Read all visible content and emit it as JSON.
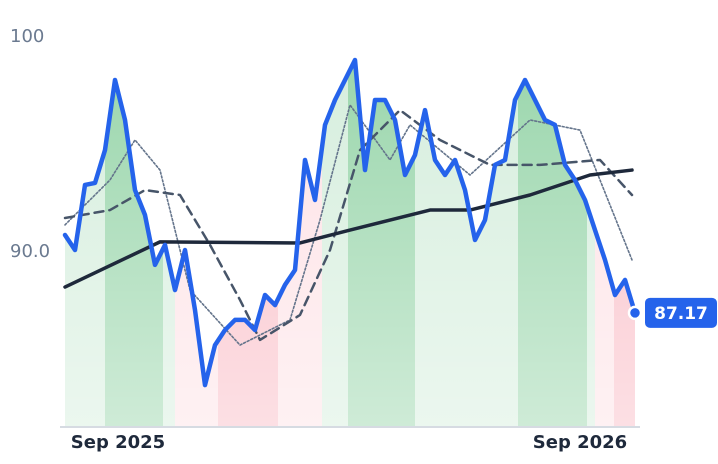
{
  "chart_data": {
    "type": "line",
    "xlim": [
      0,
      57
    ],
    "ylim": [
      81.86,
      101.72
    ],
    "xticks": [
      {
        "value": 5.3,
        "label": "Sep 2025"
      },
      {
        "value": 51.5,
        "label": "Sep 2026"
      }
    ],
    "yticks": [
      {
        "value": 90,
        "label": "90.0"
      },
      100
    ],
    "regions": [
      {
        "from": 0,
        "to": 4,
        "color": "#d3eddb"
      },
      {
        "from": 4,
        "to": 9.8,
        "color": "#93d3a6"
      },
      {
        "from": 9.8,
        "to": 11,
        "color": "#d3eddb"
      },
      {
        "from": 11,
        "to": 15.3,
        "color": "#fde0e4"
      },
      {
        "from": 15.3,
        "to": 21.3,
        "color": "#f9b9c3"
      },
      {
        "from": 21.3,
        "to": 25.7,
        "color": "#fde0e4"
      },
      {
        "from": 25.7,
        "to": 28.3,
        "color": "#d3eddb"
      },
      {
        "from": 28.3,
        "to": 35,
        "color": "#93d3a6"
      },
      {
        "from": 35,
        "to": 45.3,
        "color": "#d3eddb"
      },
      {
        "from": 45.3,
        "to": 52.2,
        "color": "#93d3a6"
      },
      {
        "from": 52.2,
        "to": 53,
        "color": "#d3eddb"
      },
      {
        "from": 53,
        "to": 54.9,
        "color": "#fde0e4"
      },
      {
        "from": 54.9,
        "to": 57,
        "color": "#f9b9c3"
      }
    ],
    "series": [
      {
        "color": "#2563eb",
        "style": "solid",
        "x": [
          0,
          1,
          2,
          3,
          4,
          5,
          6,
          7,
          8,
          9,
          10,
          11,
          12,
          13,
          14,
          15,
          16,
          17,
          18,
          19,
          20,
          21,
          22,
          23,
          24,
          25,
          26,
          27,
          28,
          29,
          30,
          31,
          32,
          33,
          34,
          35,
          36,
          37,
          38,
          39,
          40,
          41,
          42,
          43,
          44,
          45,
          46,
          47,
          48,
          49,
          50,
          51,
          52,
          53,
          54,
          55,
          56,
          57
        ],
        "values": [
          90.79,
          90.09,
          93.12,
          93.21,
          94.74,
          98.0,
          96.14,
          92.88,
          91.72,
          89.4,
          90.33,
          88.23,
          90.09,
          87.3,
          83.81,
          85.67,
          86.37,
          86.84,
          86.84,
          86.37,
          88.0,
          87.53,
          88.47,
          89.16,
          94.28,
          92.42,
          95.91,
          97.07,
          98.0,
          98.93,
          93.81,
          97.07,
          97.07,
          96.14,
          93.58,
          94.51,
          96.6,
          94.28,
          93.58,
          94.28,
          92.88,
          90.56,
          91.49,
          94.05,
          94.28,
          97.07,
          98.0,
          97.07,
          96.14,
          95.91,
          94.05,
          93.35,
          92.42,
          91.02,
          89.63,
          88.0,
          88.7,
          87.17
        ]
      },
      {
        "color": "#1e293b",
        "style": "thick",
        "x": [
          0,
          9.5,
          23.5,
          28.5,
          36.5,
          40.5,
          46.5,
          52.5,
          56.7
        ],
        "values": [
          88.37,
          90.47,
          90.42,
          91.02,
          91.95,
          91.95,
          92.65,
          93.58,
          93.81
        ]
      },
      {
        "color": "#475569",
        "style": "dashed",
        "x": [
          0,
          4.5,
          8,
          11.5,
          14.5,
          17.5,
          19.5,
          23.5,
          26.5,
          29.5,
          33.5,
          37.5,
          42.5,
          47.5,
          53.5,
          56.7
        ],
        "values": [
          91.58,
          91.95,
          92.88,
          92.65,
          90.33,
          87.77,
          85.91,
          87.07,
          90.09,
          94.74,
          96.6,
          95.21,
          94.05,
          94.05,
          94.28,
          92.65
        ]
      },
      {
        "color": "#64748b",
        "style": "dotted",
        "x": [
          0,
          4.5,
          7,
          9.5,
          12.5,
          17.5,
          22.5,
          25.5,
          28.5,
          32.5,
          34.5,
          40.5,
          46.5,
          51.5,
          56.7
        ],
        "values": [
          91.26,
          93.35,
          95.21,
          93.81,
          88.23,
          85.67,
          86.84,
          91.49,
          96.84,
          94.28,
          95.91,
          93.58,
          96.14,
          95.67,
          89.63
        ]
      }
    ]
  }
}
